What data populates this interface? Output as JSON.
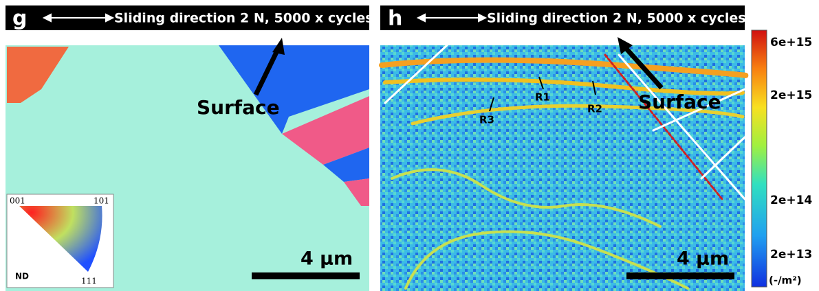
{
  "panels": [
    {
      "label": "g",
      "header": "Sliding direction 2 N, 5000 x cycles",
      "annotation": "Surface",
      "scale_bar": "4 µm",
      "legend": {
        "corners": [
          "001",
          "101",
          "111"
        ],
        "axis": "ND"
      }
    },
    {
      "label": "h",
      "header": "Sliding direction 2 N, 5000 x cycles",
      "annotation": "Surface",
      "scale_bar": "4 µm",
      "markers": [
        "R1",
        "R2",
        "R3"
      ]
    }
  ],
  "colorbar": {
    "ticks": [
      "6e+15",
      "2e+15",
      "2e+14",
      "2e+13"
    ],
    "unit": "(-/m²)"
  }
}
